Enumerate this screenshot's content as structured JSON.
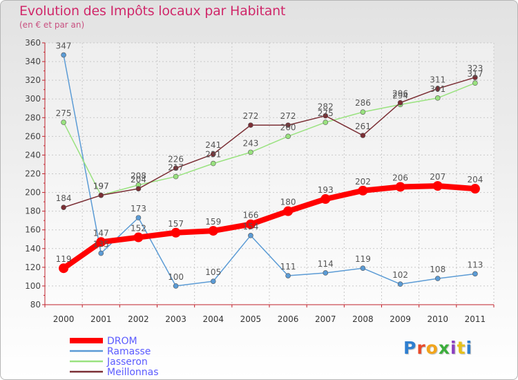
{
  "header": {
    "title": "Evolution des Impôts locaux par Habitant",
    "subtitle": "(en € et par an)"
  },
  "logo": {
    "text": "Proxiti"
  },
  "chart_data": {
    "type": "line",
    "title": "Evolution des Impôts locaux par Habitant",
    "subtitle": "(en € et par an)",
    "xlabel": "",
    "ylabel": "",
    "ylim": [
      80,
      360
    ],
    "ytick_step": 20,
    "yticks": [
      "80",
      "100",
      "120",
      "140",
      "160",
      "180",
      "200",
      "220",
      "240",
      "260",
      "280",
      "300",
      "320",
      "340",
      "360"
    ],
    "categories": [
      "2000",
      "2001",
      "2002",
      "2003",
      "2004",
      "2005",
      "2006",
      "2007",
      "2008",
      "2009",
      "2010",
      "2011"
    ],
    "grid": true,
    "legend_position": "bottom-left",
    "series": [
      {
        "name": "DROM",
        "color": "#ff0000",
        "emphasis": true,
        "values": [
          119,
          147,
          152,
          157,
          159,
          166,
          180,
          193,
          202,
          206,
          207,
          204
        ]
      },
      {
        "name": "Ramasse",
        "color": "#5b9bd5",
        "emphasis": false,
        "values": [
          347,
          135,
          173,
          100,
          105,
          154,
          111,
          114,
          119,
          102,
          108,
          113
        ]
      },
      {
        "name": "Jasseron",
        "color": "#99e27f",
        "emphasis": false,
        "values": [
          275,
          197,
          208,
          217,
          231,
          243,
          260,
          275,
          286,
          294,
          301,
          317
        ]
      },
      {
        "name": "Meillonnas",
        "color": "#7b2f35",
        "emphasis": false,
        "values": [
          184,
          197,
          204,
          226,
          241,
          272,
          272,
          282,
          261,
          296,
          311,
          323
        ]
      }
    ]
  }
}
